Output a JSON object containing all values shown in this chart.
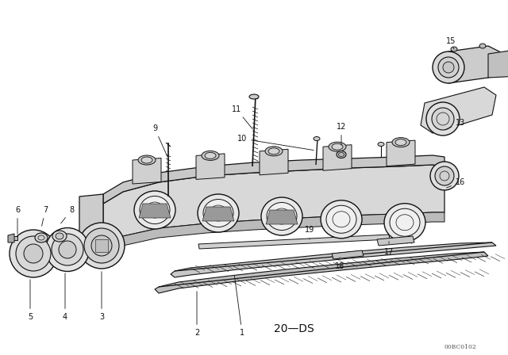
{
  "bg_color": "#ffffff",
  "fig_width": 6.4,
  "fig_height": 4.48,
  "dpi": 100,
  "label_20ds": "20—DS",
  "label_code": "00BC0102",
  "line_color": "#111111",
  "text_color": "#111111"
}
